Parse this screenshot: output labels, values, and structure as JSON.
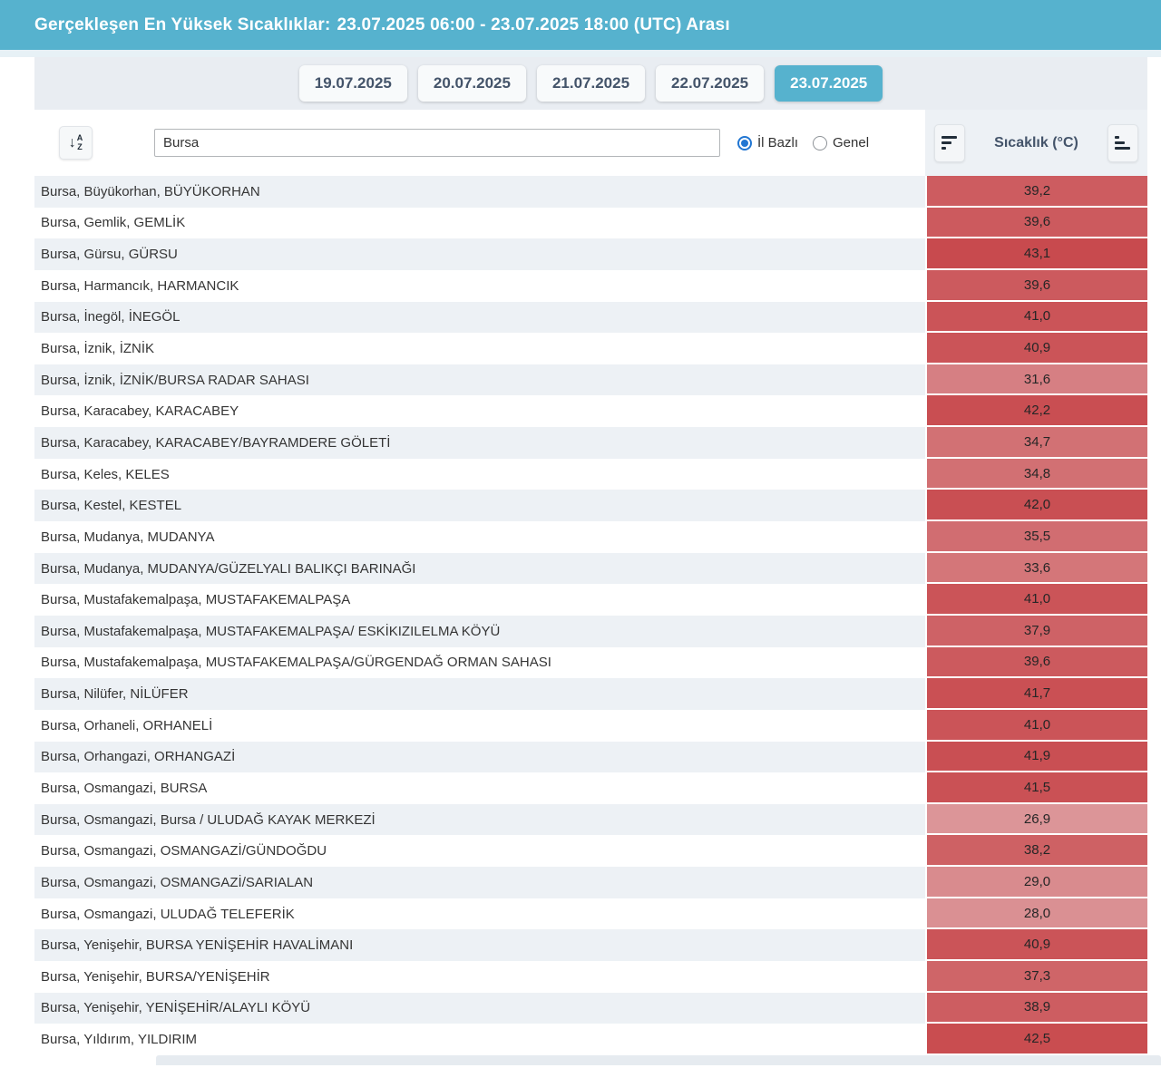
{
  "header": {
    "title_prefix": "Gerçekleşen En Yüksek Sıcaklıklar:",
    "title_range": "23.07.2025 06:00 - 23.07.2025 18:00 (UTC) Arası",
    "bar_color": "#56b2ce"
  },
  "tabs": [
    {
      "label": "19.07.2025",
      "active": false
    },
    {
      "label": "20.07.2025",
      "active": false
    },
    {
      "label": "21.07.2025",
      "active": false
    },
    {
      "label": "22.07.2025",
      "active": false
    },
    {
      "label": "23.07.2025",
      "active": true
    }
  ],
  "filter": {
    "search_value": "Bursa",
    "radio_options": [
      {
        "label": "İl Bazlı",
        "checked": true
      },
      {
        "label": "Genel",
        "checked": false
      }
    ],
    "temperature_column_header": "Sıcaklık (°C)"
  },
  "table": {
    "rows": [
      {
        "station": "Bursa, Büyükorhan, BÜYÜKORHAN",
        "value": "39,2",
        "color": "#cd5c60"
      },
      {
        "station": "Bursa, Gemlik, GEMLİK",
        "value": "39,6",
        "color": "#cc5a5e"
      },
      {
        "station": "Bursa, Gürsu, GÜRSU",
        "value": "43,1",
        "color": "#c84a4e"
      },
      {
        "station": "Bursa, Harmancık, HARMANCIK",
        "value": "39,6",
        "color": "#cc5a5e"
      },
      {
        "station": "Bursa, İnegöl, İNEGÖL",
        "value": "41,0",
        "color": "#cb5458"
      },
      {
        "station": "Bursa, İznik, İZNİK",
        "value": "40,9",
        "color": "#cb5458"
      },
      {
        "station": "Bursa, İznik, İZNİK/BURSA RADAR SAHASI",
        "value": "31,6",
        "color": "#d67f83"
      },
      {
        "station": "Bursa, Karacabey, KARACABEY",
        "value": "42,2",
        "color": "#c94e52"
      },
      {
        "station": "Bursa, Karacabey, KARACABEY/BAYRAMDERE GÖLETİ",
        "value": "34,7",
        "color": "#d27174"
      },
      {
        "station": "Bursa, Keles, KELES",
        "value": "34,8",
        "color": "#d27073"
      },
      {
        "station": "Bursa, Kestel, KESTEL",
        "value": "42,0",
        "color": "#c94f53"
      },
      {
        "station": "Bursa, Mudanya, MUDANYA",
        "value": "35,5",
        "color": "#d16d71"
      },
      {
        "station": "Bursa, Mudanya, MUDANYA/GÜZELYALI BALIKÇI BARINAĞI",
        "value": "33,6",
        "color": "#d47679"
      },
      {
        "station": "Bursa, Mustafakemalpaşa, MUSTAFAKEMALPAŞA",
        "value": "41,0",
        "color": "#cb5458"
      },
      {
        "station": "Bursa, Mustafakemalpaşa, MUSTAFAKEMALPAŞA/ ESKİKIZILELMA KÖYÜ",
        "value": "37,9",
        "color": "#ce6266"
      },
      {
        "station": "Bursa, Mustafakemalpaşa, MUSTAFAKEMALPAŞA/GÜRGENDAĞ ORMAN SAHASI",
        "value": "39,6",
        "color": "#cc5a5e"
      },
      {
        "station": "Bursa, Nilüfer, NİLÜFER",
        "value": "41,7",
        "color": "#ca5054"
      },
      {
        "station": "Bursa, Orhaneli, ORHANELİ",
        "value": "41,0",
        "color": "#cb5458"
      },
      {
        "station": "Bursa, Orhangazi, ORHANGAZİ",
        "value": "41,9",
        "color": "#c94f53"
      },
      {
        "station": "Bursa, Osmangazi, BURSA",
        "value": "41,5",
        "color": "#ca5155"
      },
      {
        "station": "Bursa, Osmangazi, Bursa / ULUDAĞ KAYAK MERKEZİ",
        "value": "26,9",
        "color": "#dc9598"
      },
      {
        "station": "Bursa, Osmangazi, OSMANGAZİ/GÜNDOĞDU",
        "value": "38,2",
        "color": "#ce6164"
      },
      {
        "station": "Bursa, Osmangazi, OSMANGAZİ/SARIALAN",
        "value": "29,0",
        "color": "#d98b8e"
      },
      {
        "station": "Bursa, Osmangazi, ULUDAĞ TELEFERİK",
        "value": "28,0",
        "color": "#da9093"
      },
      {
        "station": "Bursa, Yenişehir, BURSA YENİŞEHİR HAVALİMANI",
        "value": "40,9",
        "color": "#cb5458"
      },
      {
        "station": "Bursa, Yenişehir, BURSA/YENİŞEHİR",
        "value": "37,3",
        "color": "#cf6568"
      },
      {
        "station": "Bursa, Yenişehir, YENİŞEHİR/ALAYLI KÖYÜ",
        "value": "38,9",
        "color": "#cd5d61"
      },
      {
        "station": "Bursa, Yıldırım, YILDIRIM",
        "value": "42,5",
        "color": "#c94d50"
      }
    ]
  }
}
